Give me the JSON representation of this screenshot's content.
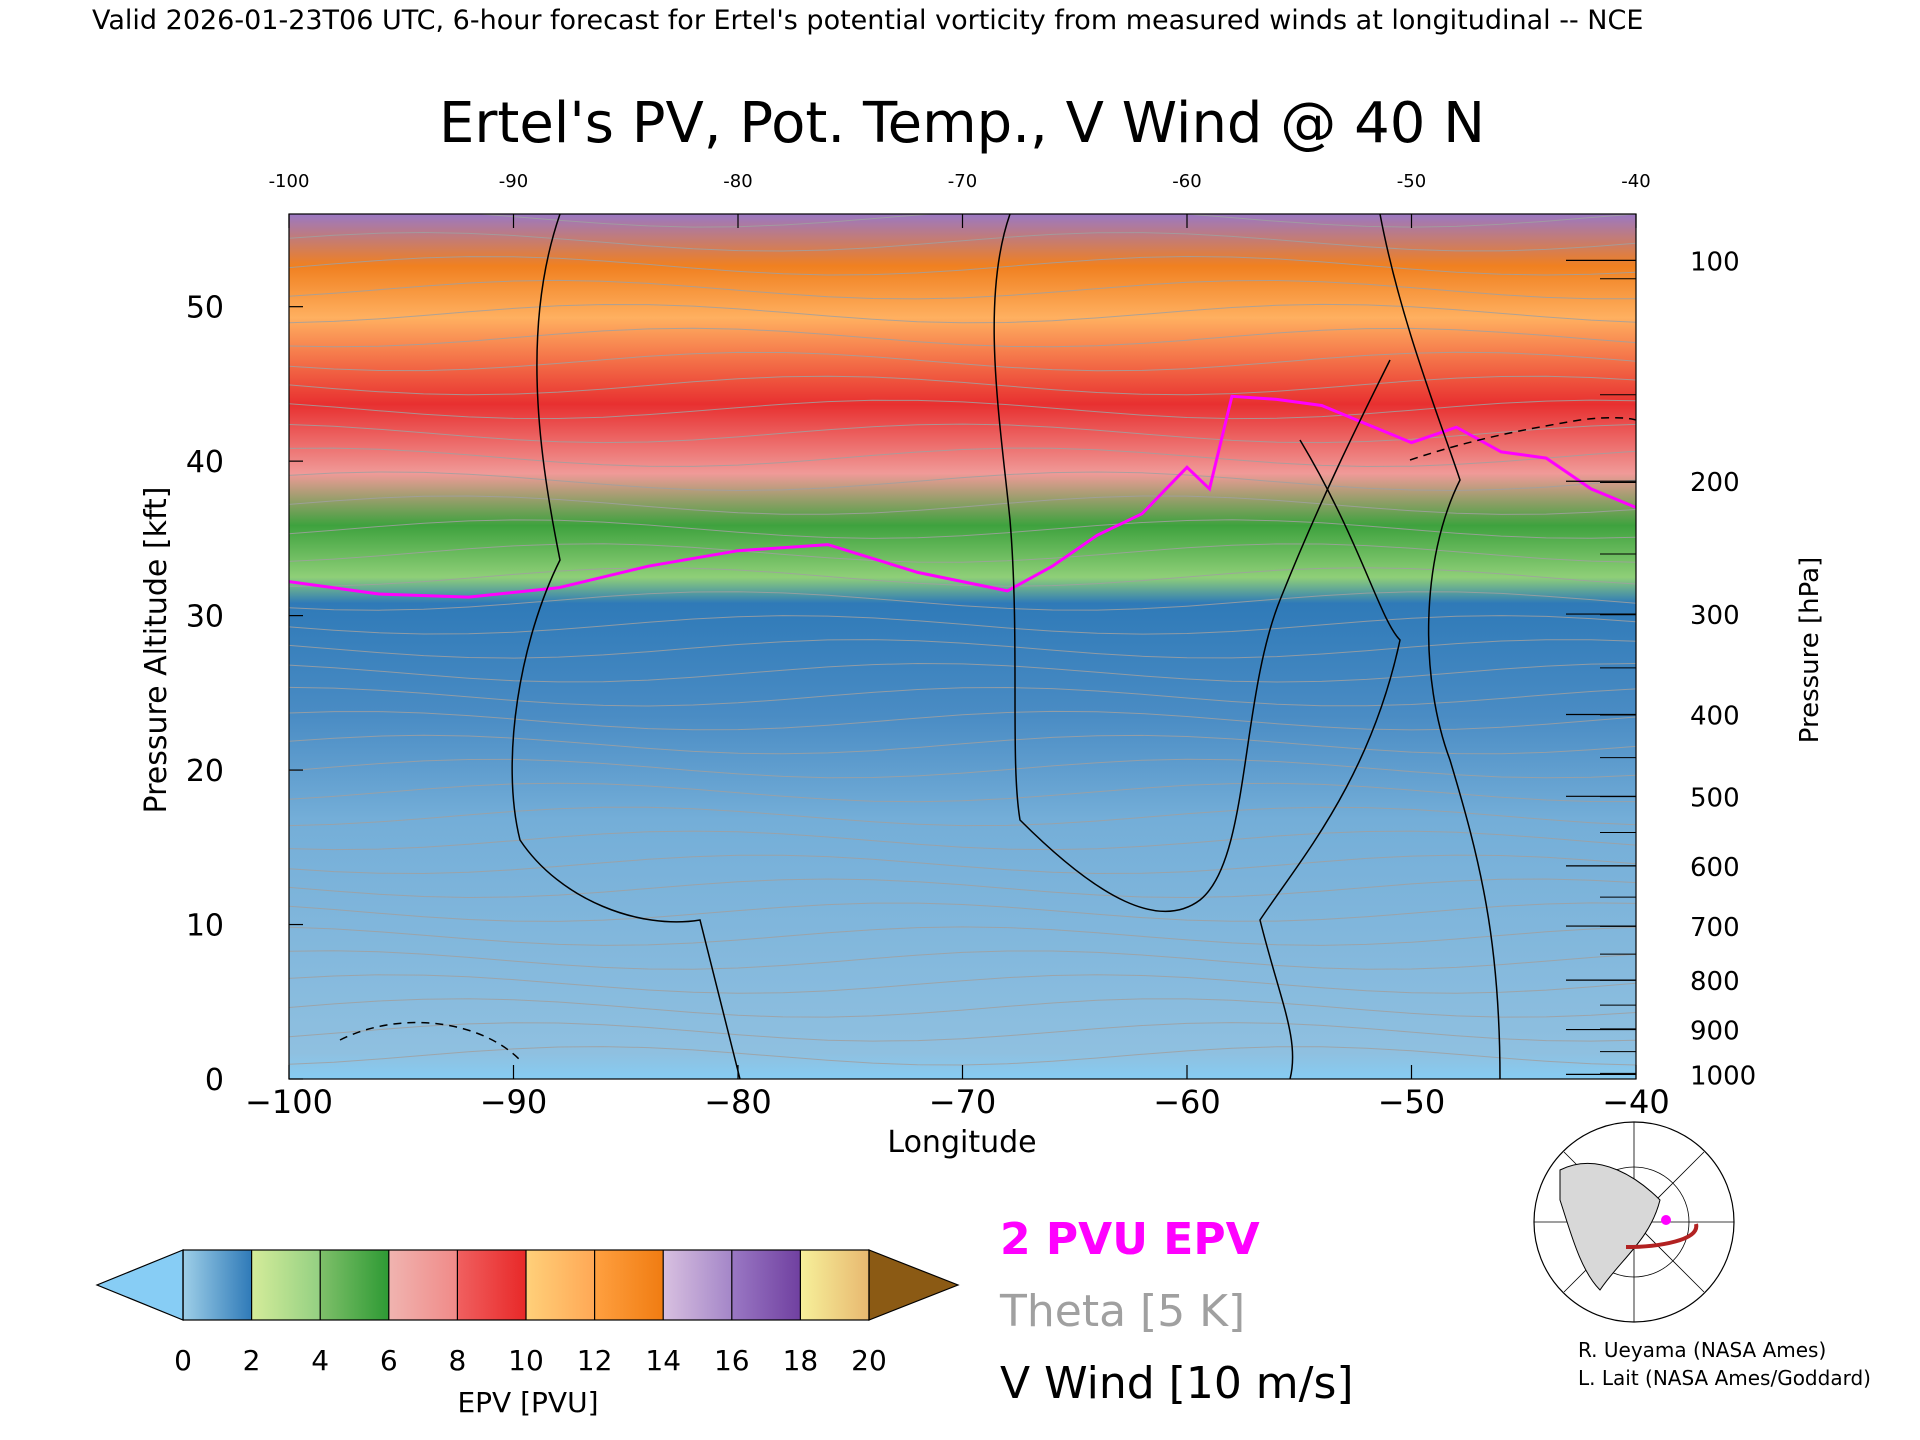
{
  "header_line": "Valid 2026-01-23T06 UTC, 6-hour forecast for Ertel's potential vorticity from measured winds at longitudinal -- NCE",
  "legend_entries": {
    "pv2": "2 PVU EPV",
    "theta": "Theta [5 K]",
    "vwind": "V Wind [10 m/s]"
  },
  "credits": [
    "R. Ueyama (NASA Ames)",
    "L. Lait (NASA Ames/Goddard)"
  ],
  "colors": {
    "pv2_line": "#ff00ff",
    "theta_line": "#a0a0a0",
    "vwind_line": "#000000",
    "map_track": "#b22222"
  },
  "chart_data": {
    "type": "heatmap",
    "title": "Ertel's PV, Pot. Temp., V Wind @ 40 N",
    "xlabel": "Longitude",
    "ylabel_left": "Pressure Altitude [kft]",
    "ylabel_right": "Pressure [hPa]",
    "xlim": [
      -100,
      -40
    ],
    "ylim": [
      0,
      56
    ],
    "x_ticks": [
      -100,
      -90,
      -80,
      -70,
      -60,
      -50,
      -40
    ],
    "x_tick_labels": [
      "−100",
      "−90",
      "−80",
      "−70",
      "−60",
      "−50",
      "−40"
    ],
    "top_tick_labels": [
      "-100",
      "-90",
      "-80",
      "-70",
      "-60",
      "-50",
      "-40"
    ],
    "y_ticks": [
      0,
      10,
      20,
      30,
      40,
      50
    ],
    "right_ticks": [
      {
        "hpa": 100,
        "kft": 53.0
      },
      {
        "hpa": 200,
        "kft": 38.7
      },
      {
        "hpa": 300,
        "kft": 30.1
      },
      {
        "hpa": 400,
        "kft": 23.6
      },
      {
        "hpa": 500,
        "kft": 18.3
      },
      {
        "hpa": 600,
        "kft": 13.8
      },
      {
        "hpa": 700,
        "kft": 9.9
      },
      {
        "hpa": 800,
        "kft": 6.4
      },
      {
        "hpa": 900,
        "kft": 3.2
      },
      {
        "hpa": 1000,
        "kft": 0.3
      }
    ],
    "pv_tropopause_kft": [
      [
        -100,
        32.2
      ],
      [
        -96,
        31.4
      ],
      [
        -92,
        31.2
      ],
      [
        -88,
        31.8
      ],
      [
        -84,
        33.2
      ],
      [
        -80,
        34.2
      ],
      [
        -76,
        34.6
      ],
      [
        -72,
        32.8
      ],
      [
        -68,
        31.6
      ],
      [
        -66,
        33.2
      ],
      [
        -64,
        35.2
      ],
      [
        -62,
        36.6
      ],
      [
        -60,
        39.6
      ],
      [
        -59,
        38.2
      ],
      [
        -58,
        44.2
      ],
      [
        -56,
        44.0
      ],
      [
        -54,
        43.6
      ],
      [
        -52,
        42.4
      ],
      [
        -50,
        41.2
      ],
      [
        -48,
        42.2
      ],
      [
        -46,
        40.6
      ],
      [
        -44,
        40.2
      ],
      [
        -42,
        38.2
      ],
      [
        -40,
        37.0
      ]
    ],
    "colorbar": {
      "label": "EPV [PVU]",
      "ticks": [
        0,
        2,
        4,
        6,
        8,
        10,
        12,
        14,
        16,
        18,
        20
      ],
      "tick_labels": [
        "0",
        "2",
        "4",
        "6",
        "8",
        "10",
        "12",
        "14",
        "16",
        "18",
        "20"
      ],
      "under_color": "#87cdf5",
      "over_color": "#8b5a14",
      "segments": [
        [
          "#9ecfe8",
          "#2f7ab8"
        ],
        [
          "#d4ec9a",
          "#94d082"
        ],
        [
          "#7fc06a",
          "#2e9a34"
        ],
        [
          "#f0b4b0",
          "#f08a88"
        ],
        [
          "#f06060",
          "#e82828"
        ],
        [
          "#ffd07a",
          "#ffa855"
        ],
        [
          "#ffa040",
          "#f07c12"
        ],
        [
          "#d8c0e0",
          "#a486c8"
        ],
        [
          "#9a78c4",
          "#7040a0"
        ],
        [
          "#f6f09a",
          "#e8b870"
        ]
      ]
    }
  }
}
